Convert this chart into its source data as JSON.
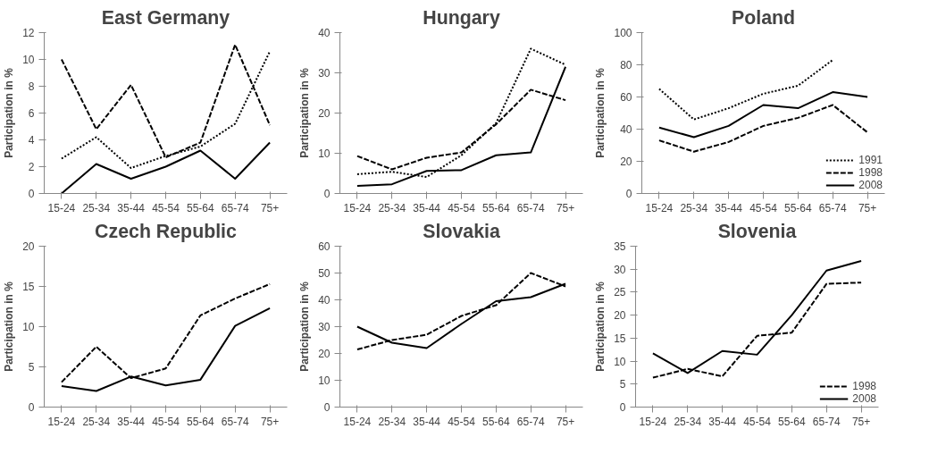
{
  "chart_data": [
    {
      "type": "line",
      "title": "East Germany",
      "ylabel": "Participation in %",
      "categories": [
        "15-24",
        "25-34",
        "35-44",
        "45-54",
        "55-64",
        "65-74",
        "75+"
      ],
      "ylim": [
        0,
        12
      ],
      "yticks": [
        0,
        2,
        4,
        6,
        8,
        10,
        12
      ],
      "grid": false,
      "legend": false,
      "series": [
        {
          "color": "#000000",
          "line_style": "dotted",
          "values": [
            2.6,
            4.2,
            1.9,
            2.8,
            3.5,
            5.2,
            10.6
          ]
        },
        {
          "color": "#000000",
          "line_style": "dashed",
          "values": [
            10,
            4.8,
            8.1,
            2.7,
            3.8,
            11.1,
            5.1
          ]
        },
        {
          "color": "#000000",
          "line_style": "solid",
          "values": [
            0,
            2.2,
            1.1,
            2.0,
            3.2,
            1.1,
            3.8
          ]
        }
      ]
    },
    {
      "type": "line",
      "title": "Hungary",
      "ylabel": "Participation in %",
      "categories": [
        "15-24",
        "25-34",
        "35-44",
        "45-54",
        "55-64",
        "65-74",
        "75+"
      ],
      "ylim": [
        0,
        40
      ],
      "yticks": [
        0,
        10,
        20,
        30,
        40
      ],
      "grid": false,
      "legend": false,
      "series": [
        {
          "color": "#000000",
          "line_style": "dotted",
          "values": [
            4.8,
            5.4,
            4.1,
            9.5,
            17.5,
            36,
            32
          ]
        },
        {
          "color": "#000000",
          "line_style": "dashed",
          "values": [
            9.3,
            6.0,
            8.9,
            10.2,
            17.2,
            25.8,
            23.2
          ]
        },
        {
          "color": "#000000",
          "line_style": "solid",
          "values": [
            1.9,
            2.3,
            5.6,
            5.8,
            9.5,
            10.2,
            31.5
          ]
        }
      ]
    },
    {
      "type": "line",
      "title": "Poland",
      "ylabel": "Participation in %",
      "categories": [
        "15-24",
        "25-34",
        "35-44",
        "45-54",
        "55-64",
        "65-74",
        "75+"
      ],
      "ylim": [
        0,
        100
      ],
      "yticks": [
        0,
        20,
        40,
        60,
        80,
        100
      ],
      "grid": false,
      "legend": "bottom right",
      "series": [
        {
          "name": "1991",
          "color": "#000000",
          "line_style": "dotted",
          "values": [
            65,
            46,
            53,
            62,
            67,
            83,
            null
          ]
        },
        {
          "name": "1998",
          "color": "#000000",
          "line_style": "dashed",
          "values": [
            33,
            26,
            32,
            42,
            47,
            55,
            38
          ]
        },
        {
          "name": "2008",
          "color": "#000000",
          "line_style": "solid",
          "values": [
            41,
            35,
            42,
            55,
            53,
            63,
            60
          ]
        }
      ]
    },
    {
      "type": "line",
      "title": "Czech Republic",
      "ylabel": "Participation in %",
      "categories": [
        "15-24",
        "25-34",
        "35-44",
        "45-54",
        "55-64",
        "65-74",
        "75+"
      ],
      "ylim": [
        0,
        20
      ],
      "yticks": [
        0,
        5,
        10,
        15,
        20
      ],
      "grid": false,
      "legend": false,
      "series": [
        {
          "color": "#000000",
          "line_style": "dashed",
          "values": [
            3.1,
            7.5,
            3.6,
            4.8,
            11.4,
            13.5,
            15.3
          ]
        },
        {
          "color": "#000000",
          "line_style": "solid",
          "values": [
            2.6,
            2.0,
            3.8,
            2.7,
            3.4,
            10.1,
            12.3
          ]
        }
      ]
    },
    {
      "type": "line",
      "title": "Slovakia",
      "ylabel": "Participation in %",
      "categories": [
        "15-24",
        "25-34",
        "35-44",
        "45-54",
        "55-64",
        "65-74",
        "75+"
      ],
      "ylim": [
        0,
        60
      ],
      "yticks": [
        0,
        10,
        20,
        30,
        40,
        50,
        60
      ],
      "grid": false,
      "legend": false,
      "series": [
        {
          "color": "#000000",
          "line_style": "dashed",
          "values": [
            21.5,
            25,
            27,
            34,
            38,
            50,
            45
          ]
        },
        {
          "color": "#000000",
          "line_style": "solid",
          "values": [
            30,
            24,
            22,
            31,
            39.5,
            41,
            46
          ]
        }
      ]
    },
    {
      "type": "line",
      "title": "Slovenia",
      "ylabel": "Participation in %",
      "categories": [
        "15-24",
        "25-34",
        "35-44",
        "45-54",
        "55-64",
        "65-74",
        "75+"
      ],
      "ylim": [
        0,
        35
      ],
      "yticks": [
        0,
        5,
        10,
        15,
        20,
        25,
        30,
        35
      ],
      "grid": false,
      "legend": "bottom right",
      "series": [
        {
          "name": "1998",
          "color": "#000000",
          "line_style": "dashed",
          "values": [
            6.4,
            8.3,
            6.7,
            15.5,
            16.2,
            26.8,
            27.1
          ]
        },
        {
          "name": "2008",
          "color": "#000000",
          "line_style": "solid",
          "values": [
            11.7,
            7.4,
            12.2,
            11.4,
            20,
            29.7,
            31.8
          ]
        }
      ]
    }
  ]
}
